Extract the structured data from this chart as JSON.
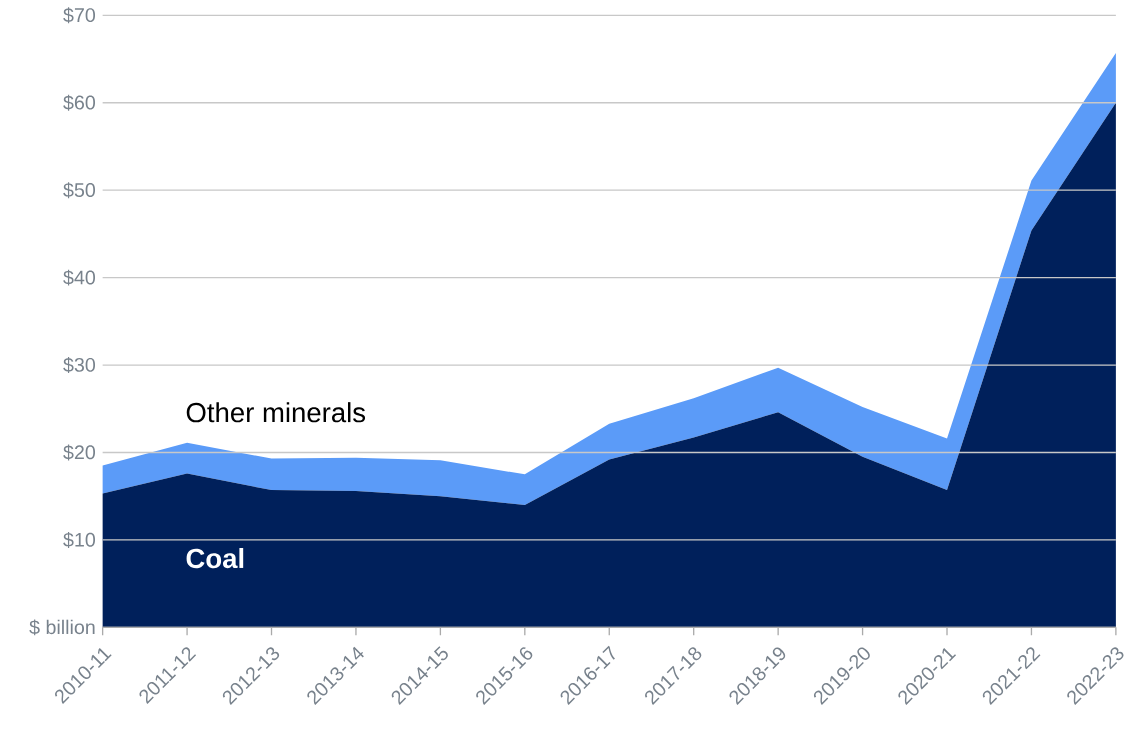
{
  "chart_data": {
    "type": "area",
    "stacked": true,
    "categories": [
      "2010-11",
      "2011-12",
      "2012-13",
      "2013-14",
      "2014-15",
      "2015-16",
      "2016-17",
      "2017-18",
      "2018-19",
      "2019-20",
      "2020-21",
      "2021-22",
      "2022-23"
    ],
    "series": [
      {
        "name": "Coal",
        "color": "#00205b",
        "values": [
          15.3,
          17.6,
          15.7,
          15.6,
          15.0,
          14.0,
          19.2,
          21.7,
          24.6,
          19.5,
          15.7,
          45.4,
          60.0
        ]
      },
      {
        "name": "Other minerals",
        "color": "#5b9bf8",
        "values": [
          3.2,
          3.5,
          3.6,
          3.8,
          4.1,
          3.5,
          4.1,
          4.5,
          5.1,
          5.7,
          5.9,
          5.7,
          5.7
        ]
      }
    ],
    "ylim": [
      0,
      70
    ],
    "yticks": [
      {
        "value": 0,
        "label": "$ billion"
      },
      {
        "value": 10,
        "label": "$10"
      },
      {
        "value": 20,
        "label": "$20"
      },
      {
        "value": 30,
        "label": "$30"
      },
      {
        "value": 40,
        "label": "$40"
      },
      {
        "value": 50,
        "label": "$50"
      },
      {
        "value": 60,
        "label": "$60"
      },
      {
        "value": 70,
        "label": "$70"
      }
    ],
    "grid": "y"
  }
}
